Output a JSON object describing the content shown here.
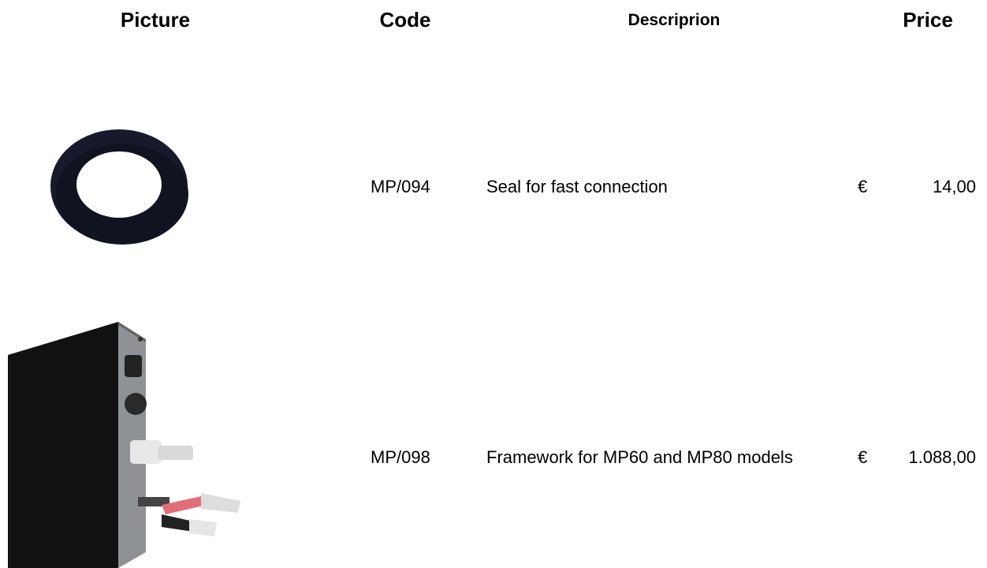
{
  "header": [
    "Picture",
    "Code",
    "Descriprion",
    "Price"
  ],
  "rows": [
    {
      "code": "MP/094",
      "description": "Seal for fast connection",
      "currency": "€",
      "amount": "14,00"
    },
    {
      "code": "MP/098",
      "description": "Framework for MP60 and MP80 models",
      "currency": "€",
      "amount": "1.088,00"
    }
  ]
}
